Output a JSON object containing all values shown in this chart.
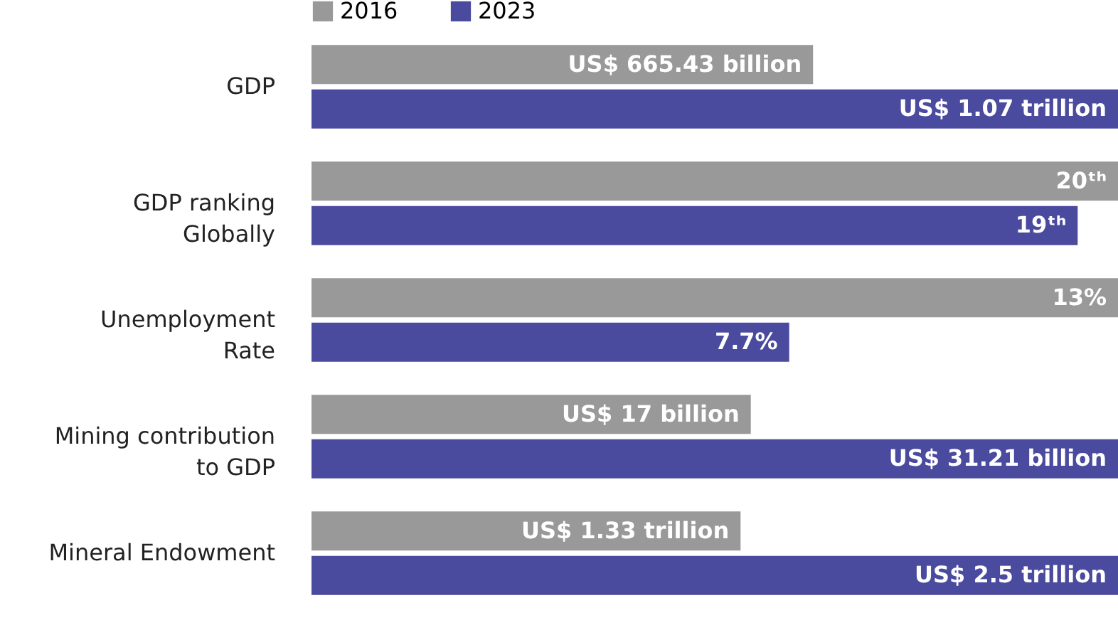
{
  "chart_data": [
    {
      "type": "bar",
      "orientation": "horizontal",
      "legend": "top",
      "tick_labels": "y",
      "categories": [
        "GDP"
      ],
      "series": [
        {
          "name": "2016",
          "color": "#999999",
          "values": [
            665430000000
          ],
          "value_labels": [
            "US$ 665.43 billion"
          ]
        },
        {
          "name": "2023",
          "color": "#4a4a9e",
          "values": [
            1070000000000
          ],
          "value_labels": [
            "US$ 1.07 trillion"
          ]
        }
      ]
    },
    {
      "type": "bar",
      "orientation": "horizontal",
      "tick_labels": "y",
      "categories": [
        "GDP ranking\nGlobally"
      ],
      "series": [
        {
          "color": "#999999",
          "values": [
            20
          ],
          "value_labels": [
            "20ᵗʰ"
          ]
        },
        {
          "color": "#4a4a9e",
          "values": [
            19
          ],
          "value_labels": [
            "19ᵗʰ"
          ]
        }
      ]
    },
    {
      "type": "bar",
      "orientation": "horizontal",
      "tick_labels": "y",
      "categories": [
        "Unemployment\nRate"
      ],
      "series": [
        {
          "color": "#999999",
          "values": [
            13
          ],
          "value_labels": [
            "13%"
          ]
        },
        {
          "color": "#4a4a9e",
          "values": [
            7.7
          ],
          "value_labels": [
            "7.7%"
          ]
        }
      ]
    },
    {
      "type": "bar",
      "orientation": "horizontal",
      "tick_labels": "y",
      "categories": [
        "Mining contribution\nto GDP"
      ],
      "series": [
        {
          "color": "#999999",
          "values": [
            17000000000
          ],
          "value_labels": [
            "US$ 17 billion"
          ]
        },
        {
          "color": "#4a4a9e",
          "values": [
            31210000000
          ],
          "value_labels": [
            "US$ 31.21 billion"
          ]
        }
      ]
    },
    {
      "type": "bar",
      "orientation": "horizontal",
      "tick_labels": "y",
      "categories": [
        "Mineral Endowment"
      ],
      "series": [
        {
          "color": "#999999",
          "values": [
            1.33
          ],
          "value_labels": [
            "US$ 1.33 trillion"
          ]
        },
        {
          "color": "#4a4a9e",
          "values": [
            2.5
          ],
          "value_labels": [
            "US$ 2.5 trillion"
          ]
        }
      ]
    }
  ]
}
